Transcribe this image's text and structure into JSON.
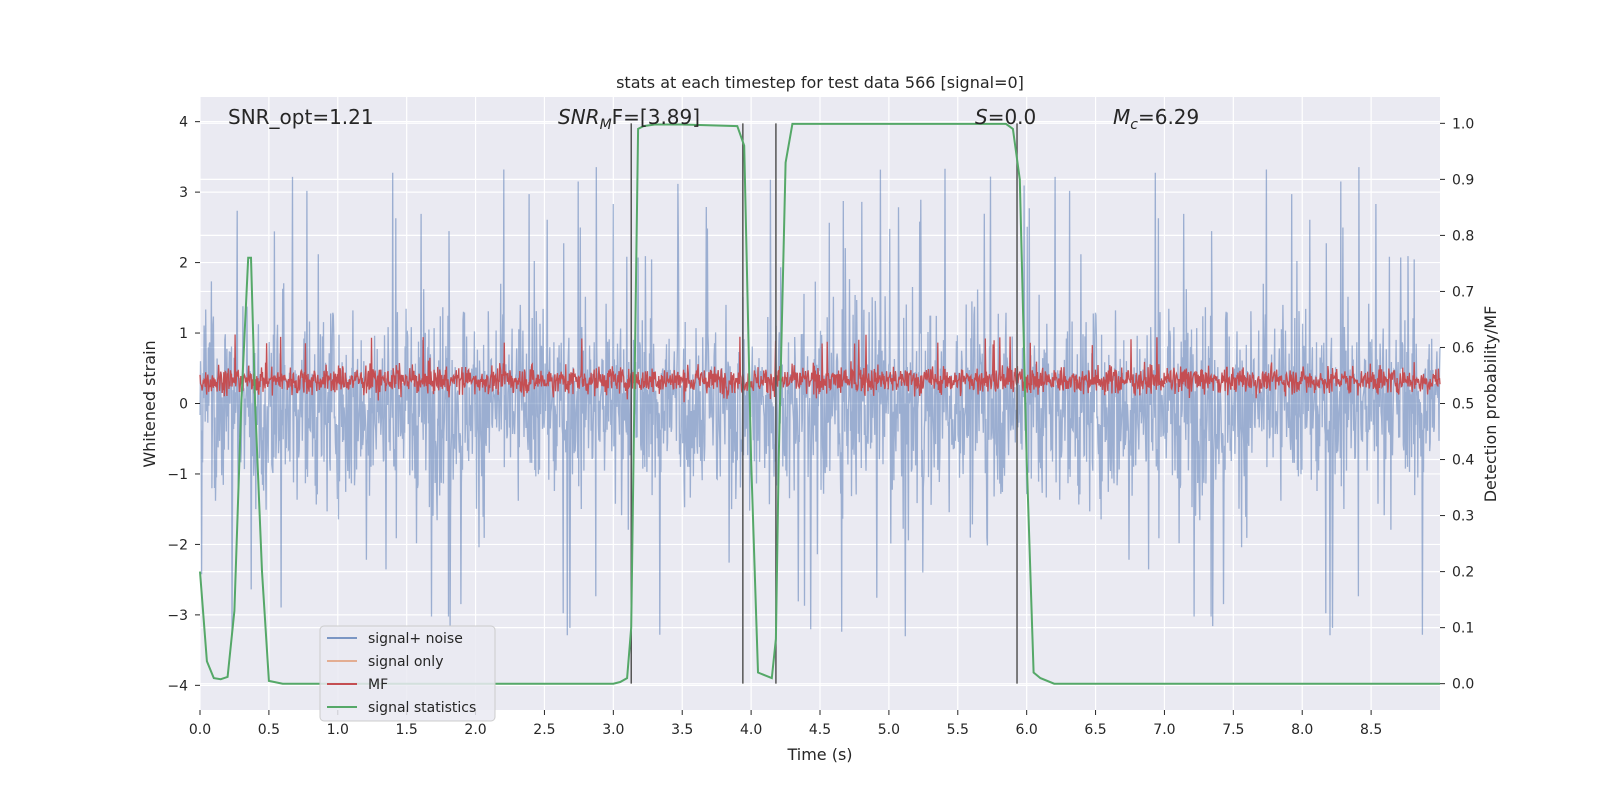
{
  "chart_data": {
    "type": "line",
    "title": "stats at each timestep for test data 566 [signal=0]",
    "xlabel": "Time (s)",
    "ylabel": "Whitened strain",
    "ylabel_right": "Detection probability/MF",
    "xlim": [
      0,
      9.0
    ],
    "ylim": [
      -4.35,
      4.35
    ],
    "ylim_right": [
      -0.047,
      1.047
    ],
    "x_ticks": [
      0.0,
      0.5,
      1.0,
      1.5,
      2.0,
      2.5,
      3.0,
      3.5,
      4.0,
      4.5,
      5.0,
      5.5,
      6.0,
      6.5,
      7.0,
      7.5,
      8.0,
      8.5
    ],
    "x_tick_labels": [
      "0.0",
      "0.5",
      "1.0",
      "1.5",
      "2.0",
      "2.5",
      "3.0",
      "3.5",
      "4.0",
      "4.5",
      "5.0",
      "5.5",
      "6.0",
      "6.5",
      "7.0",
      "7.5",
      "8.0",
      "8.5"
    ],
    "y_ticks": [
      4,
      3,
      2,
      1,
      0,
      -1,
      -2,
      -3,
      -4
    ],
    "y_tick_labels": [
      "4",
      "3",
      "2",
      "1",
      "0",
      "−1",
      "−2",
      "−3",
      "−4"
    ],
    "y_right_ticks": [
      1.0,
      0.9,
      0.8,
      0.7,
      0.6,
      0.5,
      0.4,
      0.3,
      0.2,
      0.1,
      0.0
    ],
    "y_right_tick_labels": [
      "1.0",
      "0.9",
      "0.8",
      "0.7",
      "0.6",
      "0.5",
      "0.4",
      "0.3",
      "0.2",
      "0.1",
      "0.0"
    ],
    "grid": true,
    "legend_position": "lower-left",
    "annotations": {
      "snr_opt": "SNR_opt=1.21",
      "snr_mf_prefix": "SNR",
      "snr_mf_sub": "M",
      "snr_mf_rest": "F=[3.89]",
      "s_label": "S",
      "s_value": "=0.0",
      "mc_label": "M",
      "mc_sub": "c",
      "mc_value": "=6.29"
    },
    "series": [
      {
        "name": "signal+ noise",
        "color": "#4c72b0",
        "opacity": 0.5,
        "axis": "left",
        "description": "noise-like whitened strain, roughly ±1.6 band with peaks to ±3.5",
        "envelope": {
          "low": -1.6,
          "high": 1.55,
          "spike_max": 3.5,
          "spike_min": -3.8
        }
      },
      {
        "name": "signal only",
        "color": "#dd8452",
        "axis": "left",
        "values": []
      },
      {
        "name": "MF",
        "color": "#c44e52",
        "axis": "left",
        "description": "matched filter output fluctuating between about 0.0 and 0.75",
        "envelope": {
          "low": 0.0,
          "high": 0.75,
          "spike_max": 0.98
        }
      },
      {
        "name": "signal statistics",
        "color": "#55a868",
        "axis": "right",
        "x": [
          0.0,
          0.05,
          0.1,
          0.15,
          0.2,
          0.25,
          0.3,
          0.35,
          0.37,
          0.4,
          0.45,
          0.5,
          0.6,
          1.0,
          2.0,
          3.0,
          3.05,
          3.1,
          3.13,
          3.18,
          3.22,
          3.3,
          3.5,
          3.9,
          3.95,
          4.0,
          4.05,
          4.1,
          4.15,
          4.18,
          4.2,
          4.25,
          4.3,
          4.5,
          5.0,
          5.85,
          5.9,
          5.95,
          6.0,
          6.05,
          6.1,
          6.2,
          6.5,
          7.0,
          8.0,
          9.0
        ],
        "y": [
          0.2,
          0.04,
          0.01,
          0.008,
          0.012,
          0.13,
          0.5,
          0.76,
          0.76,
          0.5,
          0.2,
          0.005,
          0.0,
          0.0,
          0.0,
          0.0,
          0.003,
          0.01,
          0.1,
          0.99,
          0.995,
          0.998,
          0.998,
          0.995,
          0.96,
          0.4,
          0.02,
          0.015,
          0.01,
          0.08,
          0.4,
          0.93,
          0.999,
          0.999,
          0.999,
          0.999,
          0.99,
          0.9,
          0.4,
          0.02,
          0.01,
          0.0,
          0.0,
          0.0,
          0.0,
          0.0
        ]
      }
    ],
    "vertical_lines": [
      {
        "x": 3.13,
        "color": "#555555"
      },
      {
        "x": 3.94,
        "color": "#555555"
      },
      {
        "x": 4.18,
        "color": "#555555"
      },
      {
        "x": 5.93,
        "color": "#555555"
      }
    ],
    "colors": {
      "axes_bg": "#eaeaf2",
      "grid": "#ffffff",
      "text": "#262626"
    }
  }
}
